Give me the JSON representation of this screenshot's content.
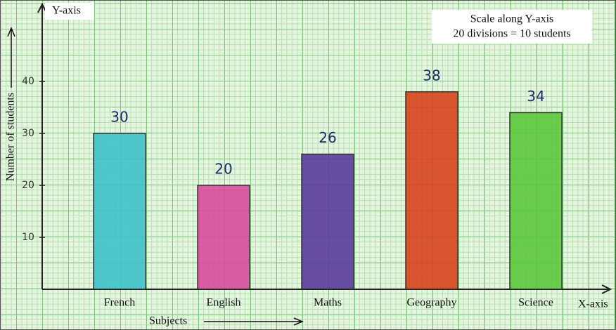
{
  "chart_data": {
    "type": "bar",
    "y_axis_name": "Y-axis",
    "x_axis_name": "X-axis",
    "y_label": "Number of students",
    "x_label": "Subjects",
    "annotations": [
      "Scale along Y-axis",
      "20 divisions = 10 students"
    ],
    "categories": [
      "French",
      "English",
      "Maths",
      "Geography",
      "Science"
    ],
    "values": [
      30,
      20,
      26,
      38,
      34
    ],
    "colors": [
      "#3fc3cb",
      "#d94c9c",
      "#5a3c9c",
      "#d8441c",
      "#5cc83c"
    ],
    "ylim": [
      0,
      55
    ],
    "yticks": [
      10,
      20,
      30,
      40
    ]
  }
}
